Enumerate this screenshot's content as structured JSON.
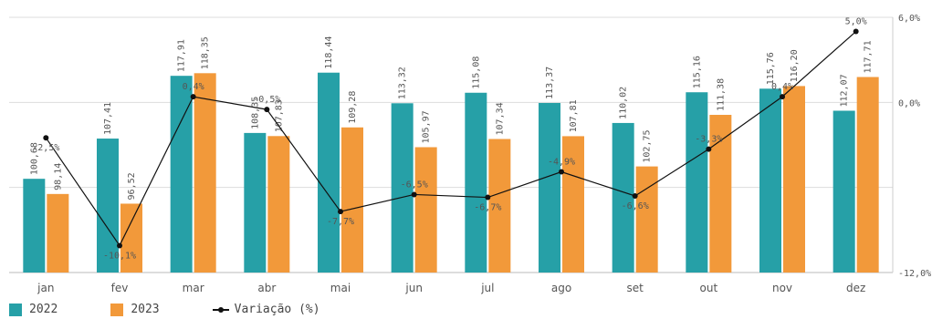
{
  "chart_data": {
    "type": "bar",
    "categories": [
      "jan",
      "fev",
      "mar",
      "abr",
      "mai",
      "jun",
      "jul",
      "ago",
      "set",
      "out",
      "nov",
      "dez"
    ],
    "series": [
      {
        "name": "2022",
        "values": [
          100.68,
          107.41,
          117.91,
          108.35,
          118.44,
          113.32,
          115.08,
          113.37,
          110.02,
          115.16,
          115.76,
          112.07
        ],
        "labels": [
          "100,68",
          "107,41",
          "117,91",
          "108,35",
          "118,44",
          "113,32",
          "115,08",
          "113,37",
          "110,02",
          "115,16",
          "115,76",
          "112,07"
        ],
        "color": "#26A0A7"
      },
      {
        "name": "2023",
        "values": [
          98.14,
          96.52,
          118.35,
          107.83,
          109.28,
          105.97,
          107.34,
          107.81,
          102.75,
          111.38,
          116.2,
          117.71
        ],
        "labels": [
          "98,14",
          "96,52",
          "118,35",
          "107,83",
          "109,28",
          "105,97",
          "107,34",
          "107,81",
          "102,75",
          "111,38",
          "116,20",
          "117,71"
        ],
        "color": "#F2993A"
      }
    ],
    "line_series": {
      "name": "Variação (%)",
      "values": [
        -2.5,
        -10.1,
        0.4,
        -0.5,
        -7.7,
        -6.5,
        -6.7,
        -4.9,
        -6.6,
        -3.3,
        0.4,
        5.0
      ],
      "labels": [
        "-2,5%",
        "-10,1%",
        "0,4%",
        "-0,5%",
        "-7,7%",
        "-6,5%",
        "-6,7%",
        "-4,9%",
        "-6,6%",
        "-3,3%",
        "0,4%",
        "5,0%"
      ],
      "color": "#111111"
    },
    "right_axis": {
      "ylim": [
        -12.0,
        6.0
      ],
      "ticks": [
        6.0,
        0.0,
        -12.0
      ],
      "tick_labels": [
        "6,0%",
        "0,0%",
        "-12,0%"
      ]
    },
    "grid": true,
    "legend_position": "bottom-left"
  },
  "legend": {
    "item1": "2022",
    "item2": "2023",
    "item3": "Variação (%)"
  }
}
